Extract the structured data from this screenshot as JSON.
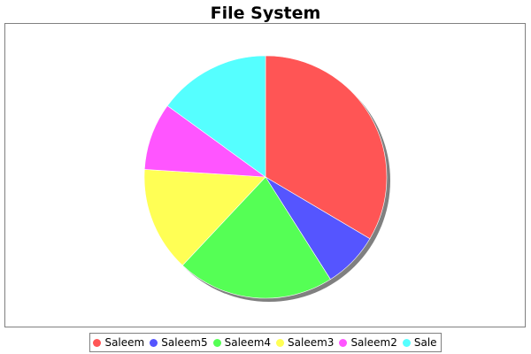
{
  "chart_data": {
    "type": "pie",
    "title": "File System",
    "legend_position": "bottom",
    "shadow": true,
    "slices": [
      {
        "name": "Saleem",
        "value": 33.5,
        "color": "#ff5555"
      },
      {
        "name": "Saleem5",
        "value": 7.5,
        "color": "#5555ff"
      },
      {
        "name": "Saleem4",
        "value": 21.0,
        "color": "#55ff55"
      },
      {
        "name": "Saleem3",
        "value": 14.0,
        "color": "#ffff55"
      },
      {
        "name": "Saleem2",
        "value": 9.0,
        "color": "#ff55ff"
      },
      {
        "name": "Sale",
        "value": 15.0,
        "color": "#55ffff"
      }
    ]
  }
}
